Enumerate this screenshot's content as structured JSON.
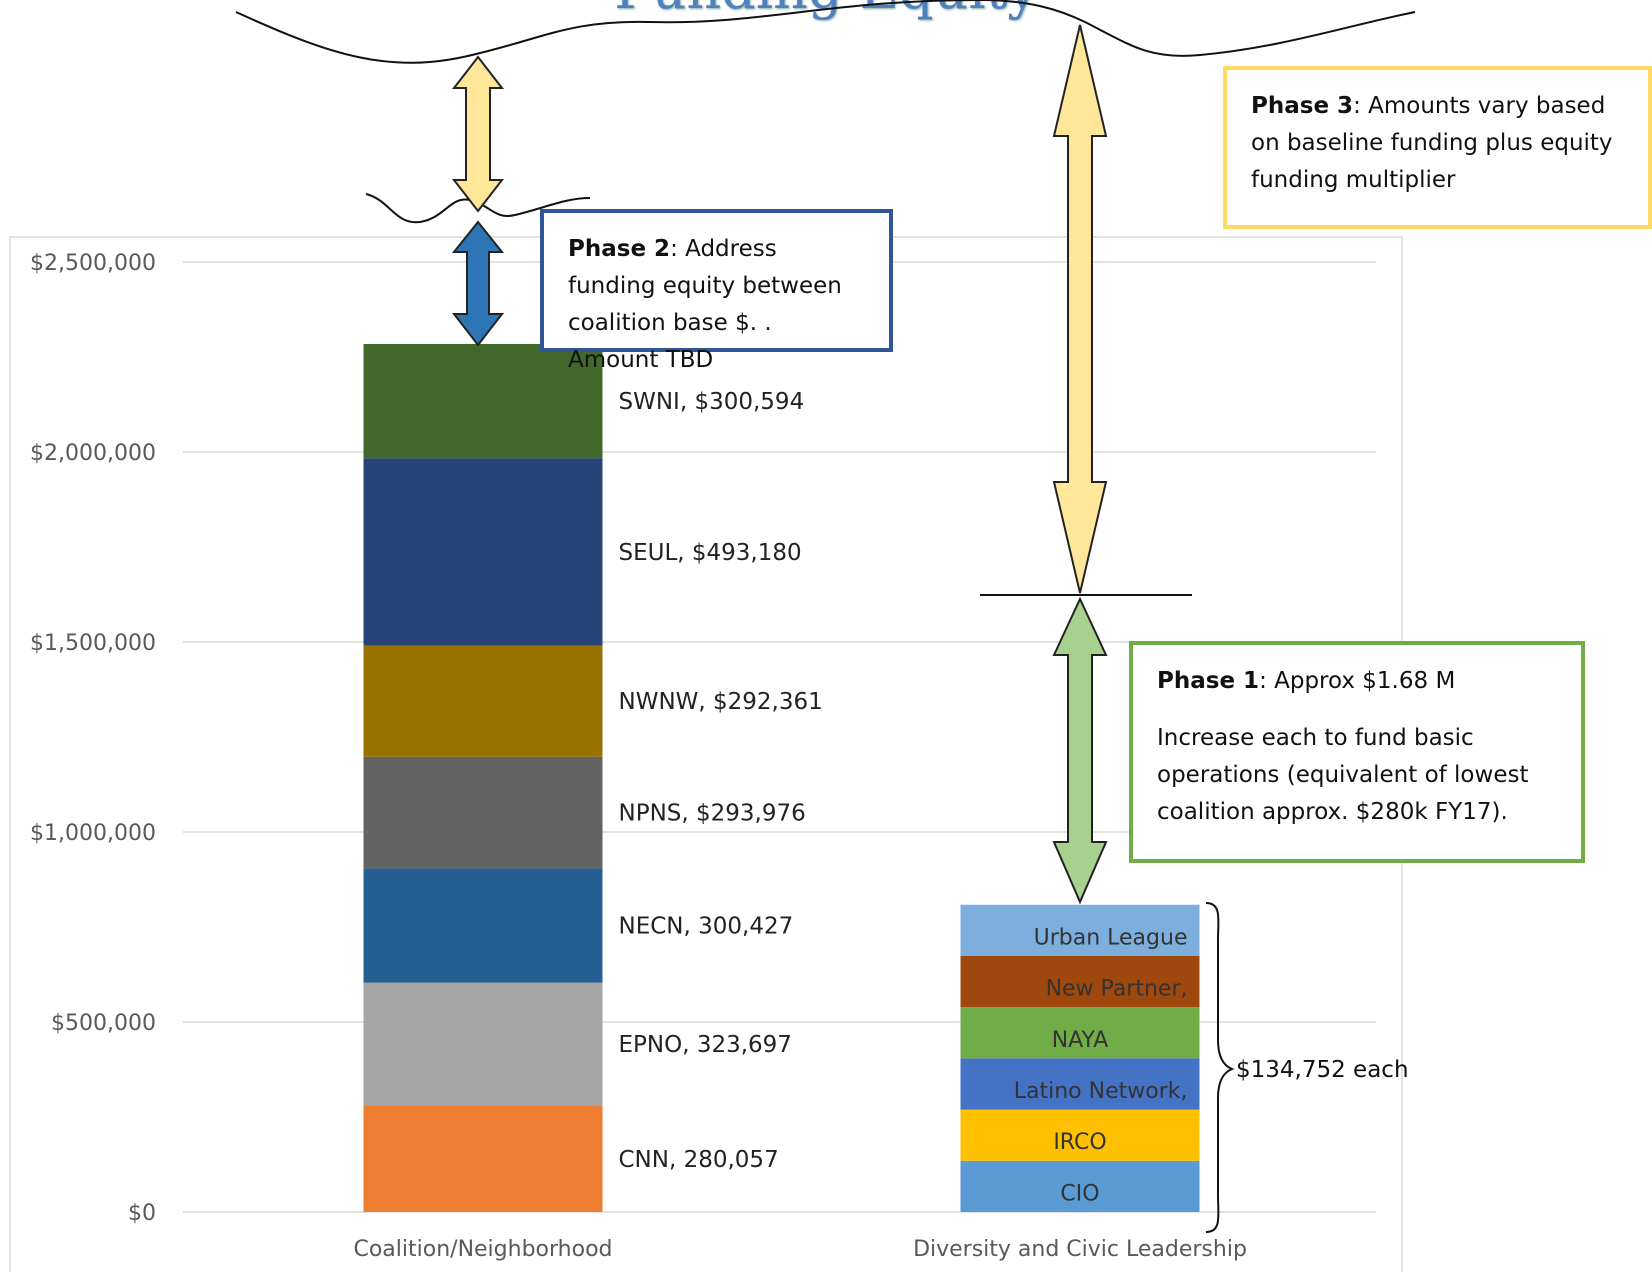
{
  "title": "Funding Equity",
  "colors": {
    "phase1": "#70ad47",
    "phase2": "#2f5597",
    "phase3": "#ffd966",
    "arrow_yellow": "#ffe699",
    "arrow_blue": "#2e75b6",
    "arrow_green": "#a9d18e"
  },
  "callouts": {
    "phase2": {
      "label": "Phase 2",
      "text": ": Address funding equity between coalition base $. . Amount TBD"
    },
    "phase3": {
      "label": "Phase 3",
      "text": ": Amounts vary based on baseline funding plus equity funding multiplier"
    },
    "phase1": {
      "label": "Phase 1",
      "text": ": Approx $1.68 M",
      "detail": "Increase each to fund basic operations (equivalent of lowest coalition approx. $280k FY17)."
    }
  },
  "brace_label": "$134,752 each",
  "chart_data": {
    "type": "bar",
    "stacked": true,
    "categories": [
      "Coalition/Neighborhood",
      "Diversity and Civic Leadership"
    ],
    "ylim": [
      0,
      2500000
    ],
    "yticks": [
      "$0",
      "$500,000",
      "$1,000,000",
      "$1,500,000",
      "$2,000,000",
      "$2,500,000"
    ],
    "grid": true,
    "stacks": [
      {
        "category": "Coalition/Neighborhood",
        "segments": [
          {
            "name": "CNN",
            "value": 280057,
            "label": "CNN, 280,057",
            "color": "#ed7d31"
          },
          {
            "name": "EPNO",
            "value": 323697,
            "label": "EPNO, 323,697",
            "color": "#a5a5a5"
          },
          {
            "name": "NECN",
            "value": 300427,
            "label": "NECN, 300,427",
            "color": "#255e91"
          },
          {
            "name": "NPNS",
            "value": 293976,
            "label": "NPNS, $293,976",
            "color": "#636363"
          },
          {
            "name": "NWNW",
            "value": 292361,
            "label": "NWNW, $292,361",
            "color": "#997300"
          },
          {
            "name": "SEUL",
            "value": 493180,
            "label": "SEUL, $493,180",
            "color": "#264478"
          },
          {
            "name": "SWNI",
            "value": 300594,
            "label": "SWNI, $300,594",
            "color": "#43682b"
          }
        ]
      },
      {
        "category": "Diversity and Civic Leadership",
        "segments": [
          {
            "name": "CIO",
            "value": 134752,
            "label": "CIO",
            "color": "#5b9bd5"
          },
          {
            "name": "IRCO",
            "value": 134752,
            "label": "IRCO",
            "color": "#ffc000"
          },
          {
            "name": "Latino Network",
            "value": 134752,
            "label": "Latino Network,",
            "color": "#4472c4"
          },
          {
            "name": "NAYA",
            "value": 134752,
            "label": "NAYA",
            "color": "#70ad47"
          },
          {
            "name": "New Partner",
            "value": 134752,
            "label": "New Partner,",
            "color": "#9e480e"
          },
          {
            "name": "Urban League",
            "value": 134752,
            "label": "Urban League",
            "color": "#7cafdd"
          }
        ]
      }
    ]
  }
}
